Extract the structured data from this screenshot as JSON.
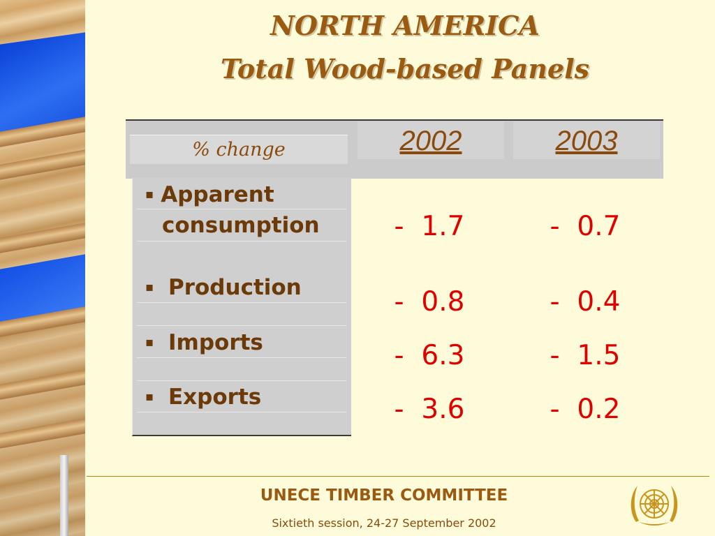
{
  "slide": {
    "title_line1": "NORTH AMERICA",
    "title_line2": "Total Wood-based Panels"
  },
  "table": {
    "header_label": "% change",
    "years": [
      "2002",
      "2003"
    ],
    "rows": [
      {
        "label_line1": "Apparent",
        "label_line2": "consumption",
        "v2002": "-  1.7",
        "v2003": "-  0.7"
      },
      {
        "label_line1": "Production",
        "v2002": "-  0.8",
        "v2003": "-  0.4"
      },
      {
        "label_line1": "Imports",
        "v2002": "-  6.3",
        "v2003": "-  1.5"
      },
      {
        "label_line1": "Exports",
        "v2002": "-  3.6",
        "v2003": "-  0.2"
      }
    ],
    "bullet": "▪"
  },
  "footer": {
    "org": "UNECE TIMBER COMMITTEE",
    "session": "Sixtieth session, 24-27 September 2002"
  },
  "colors": {
    "background": "#fdfbd9",
    "title": "#9a5a12",
    "values": "#e00000",
    "labels": "#6b3a08"
  },
  "icons": {
    "logo": "un-emblem-icon",
    "side_image": "wood-panels-image"
  }
}
